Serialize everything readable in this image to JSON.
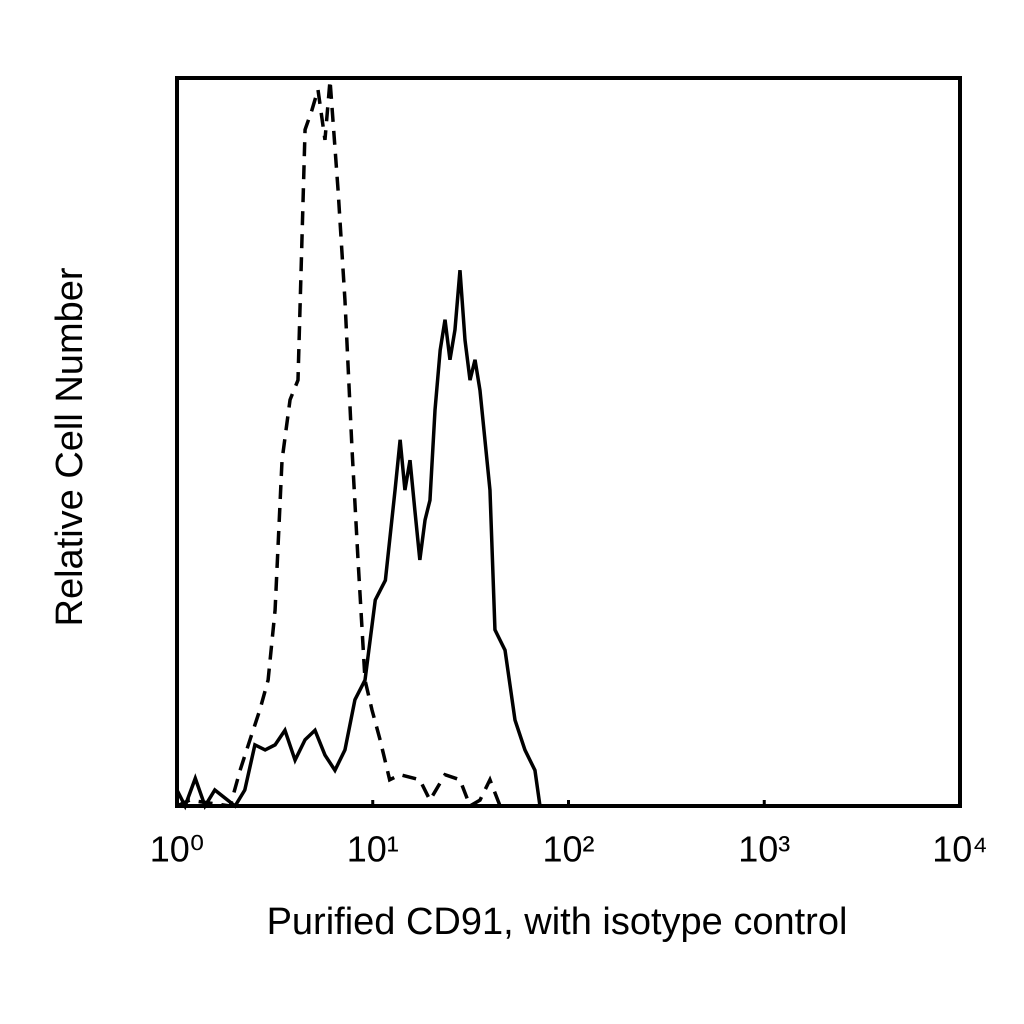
{
  "chart_data": {
    "type": "line",
    "xlabel": "Purified CD91, with isotype control",
    "ylabel": "Relative Cell Number",
    "xscale": "log",
    "xlim": [
      1,
      10000
    ],
    "ylim": [
      0,
      100
    ],
    "xticks": [
      {
        "value": 1,
        "label": "10⁰"
      },
      {
        "value": 10,
        "label": "10¹"
      },
      {
        "value": 100,
        "label": "10²"
      },
      {
        "value": 1000,
        "label": "10³"
      },
      {
        "value": 10000,
        "label": "10⁴"
      }
    ],
    "grid": false,
    "series": [
      {
        "color": "#000000",
        "dash": false,
        "x": [
          1,
          1.1,
          1.24,
          1.39,
          1.56,
          1.98,
          2.22,
          2.5,
          2.82,
          3.17,
          3.56,
          4.01,
          4.51,
          5.07,
          5.7,
          6.41,
          7.21,
          8.11,
          9.13,
          10.3,
          11.6,
          13,
          13.8,
          14.6,
          15.5,
          16.4,
          17.4,
          18.5,
          19.6,
          20.8,
          22.1,
          23.4,
          24.8,
          26.3,
          27.9,
          29.6,
          31.4,
          33.3,
          35.3,
          39.7,
          42.1,
          47.4,
          53.3,
          59.9,
          67.4,
          71.5
        ],
        "values": [
          2.2,
          0,
          3.8,
          0,
          2.2,
          0,
          2.2,
          8.4,
          7.7,
          8.4,
          10.4,
          6.3,
          9.1,
          10.4,
          7,
          4.9,
          7.7,
          14.6,
          17.3,
          28.3,
          31,
          43.4,
          50.3,
          43.4,
          47.5,
          40.7,
          33.8,
          39.3,
          42,
          54.4,
          62.6,
          66.8,
          61.3,
          65.4,
          73.6,
          64,
          58.5,
          61.3,
          57.1,
          43.4,
          24.2,
          21.4,
          11.8,
          7.7,
          4.9,
          0
        ]
      },
      {
        "color": "#000000",
        "dash": true,
        "x": [
          1,
          1.16,
          1.87,
          2.1,
          2.36,
          2.65,
          2.92,
          3.17,
          3.44,
          3.78,
          4.15,
          4.51,
          4.89,
          5.25,
          5.7,
          6.05,
          6.65,
          7.21,
          7.84,
          8.41,
          9.13,
          9.91,
          10.9,
          12.2,
          13.8,
          17.4,
          19.6,
          23.4,
          27.9,
          31.4,
          35.3,
          39.7,
          44.7,
          56.5
        ],
        "values": [
          0,
          0.8,
          0,
          4.9,
          9.1,
          13.2,
          17.3,
          26.9,
          47.5,
          55.8,
          58.5,
          92.9,
          95.6,
          98.4,
          91.5,
          99.7,
          84.6,
          69.5,
          48.9,
          33.8,
          17.3,
          13.2,
          9.1,
          3.6,
          4.3,
          3.6,
          0.8,
          4.3,
          3.6,
          0,
          0.8,
          3.6,
          0,
          0
        ]
      }
    ]
  }
}
